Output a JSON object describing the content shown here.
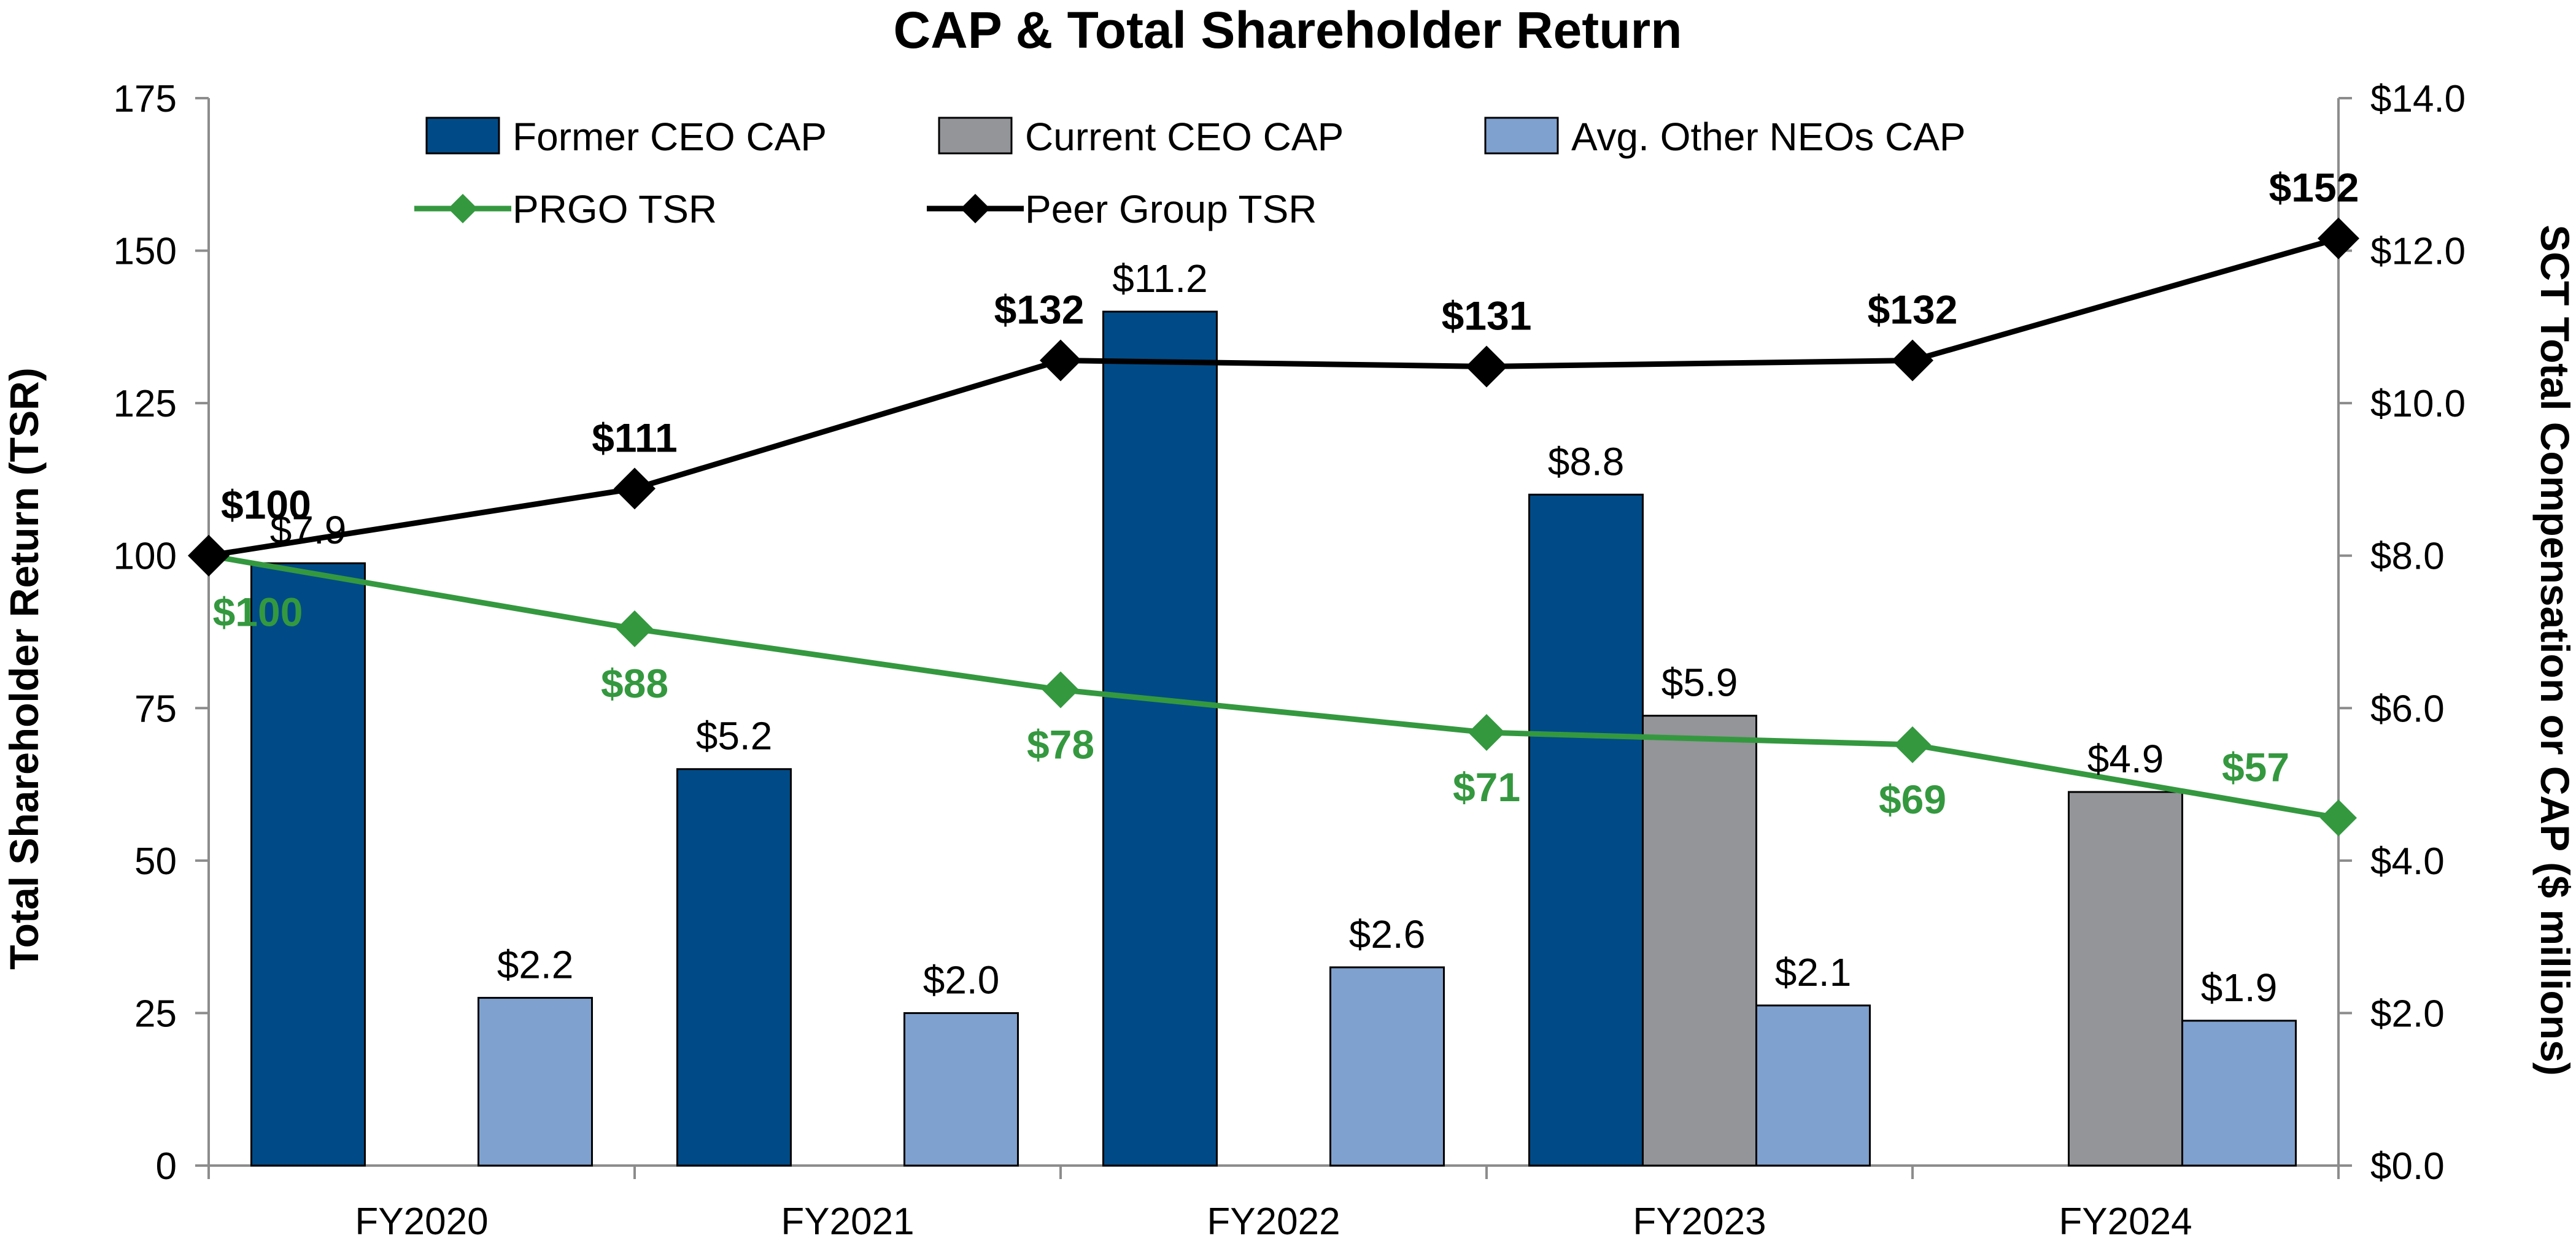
{
  "chart_data": {
    "type": "bar",
    "title": "CAP & Total Shareholder Return",
    "ylabel_left": "Total Shareholder Return (TSR)",
    "ylabel_right": "SCT Total Compensation or CAP ($ millions)",
    "categories": [
      "FY2020",
      "FY2021",
      "FY2022",
      "FY2023",
      "FY2024"
    ],
    "left_axis": {
      "ylim": [
        0,
        175
      ],
      "ticks": [
        0,
        25,
        50,
        75,
        100,
        125,
        150,
        175
      ],
      "tick_labels": [
        "0",
        "25",
        "50",
        "75",
        "100",
        "125",
        "150",
        "175"
      ]
    },
    "right_axis": {
      "ylim": [
        0,
        14
      ],
      "ticks": [
        0,
        2,
        4,
        6,
        8,
        10,
        12,
        14
      ],
      "tick_labels": [
        "$0.0",
        "$2.0",
        "$4.0",
        "$6.0",
        "$8.0",
        "$10.0",
        "$12.0",
        "$14.0"
      ]
    },
    "grid": false,
    "legend_position": "top",
    "bar_series": [
      {
        "name": "Former CEO CAP",
        "color": "#004b87",
        "values": [
          7.9,
          5.2,
          11.2,
          8.8,
          null
        ],
        "labels": [
          "$7.9",
          "$5.2",
          "$11.2",
          "$8.8",
          ""
        ]
      },
      {
        "name": "Current CEO CAP",
        "color": "#939598",
        "values": [
          null,
          null,
          null,
          5.9,
          4.9
        ],
        "labels": [
          "",
          "",
          "",
          "$5.9",
          "$4.9"
        ]
      },
      {
        "name": "Avg. Other NEOs CAP",
        "color": "#7fa1cf",
        "values": [
          2.2,
          2.0,
          2.6,
          2.1,
          1.9
        ],
        "labels": [
          "$2.2",
          "$2.0",
          "$2.6",
          "$2.1",
          "$1.9"
        ]
      }
    ],
    "line_series": [
      {
        "name": "PRGO TSR",
        "color": "#34983f",
        "x": [
          0,
          1,
          2,
          3,
          4,
          5
        ],
        "values": [
          100,
          88,
          78,
          71,
          69,
          57
        ],
        "labels": [
          "$100",
          "$88",
          "$78",
          "$71",
          "$69",
          "$57"
        ]
      },
      {
        "name": "Peer Group TSR",
        "color": "#000000",
        "x": [
          0,
          1,
          2,
          3,
          4,
          5
        ],
        "values": [
          100,
          111,
          132,
          131,
          132,
          152
        ],
        "labels": [
          "$100",
          "$111",
          "$132",
          "$131",
          "$132",
          "$152"
        ]
      }
    ]
  }
}
